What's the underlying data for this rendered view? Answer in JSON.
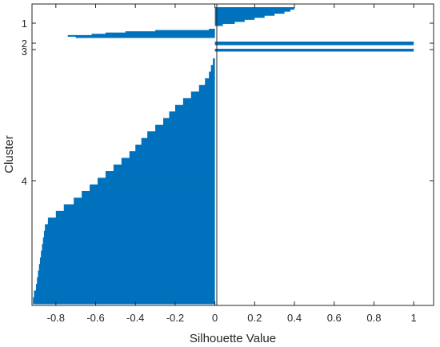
{
  "chart_data": {
    "type": "bar",
    "orientation": "horizontal",
    "xlabel": "Silhouette Value",
    "ylabel": "Cluster",
    "xlim": [
      -0.92,
      1.1
    ],
    "x_ticks": [
      -0.8,
      -0.6,
      -0.4,
      -0.2,
      0,
      0.2,
      0.4,
      0.6,
      0.8,
      1
    ],
    "x_tick_labels": [
      "-0.8",
      "-0.6",
      "-0.4",
      "-0.2",
      "0",
      "0.2",
      "0.4",
      "0.6",
      "0.8",
      "1"
    ],
    "y_tick_labels": [
      "1",
      "2",
      "3",
      "4"
    ],
    "grid": false,
    "bar_color": "#0072BD",
    "series": [
      {
        "cluster": "1",
        "values": [
          0.4,
          0.38,
          0.35,
          0.3,
          0.25,
          0.2,
          0.15,
          0.1,
          0.04
        ]
      },
      {
        "cluster": "1 (negative)",
        "values": [
          -0.03,
          -0.3,
          -0.45,
          -0.55,
          -0.62,
          -0.74,
          -0.7
        ]
      },
      {
        "cluster": "2",
        "values": [
          1
        ]
      },
      {
        "cluster": "3",
        "values": [
          1
        ]
      },
      {
        "cluster": "4",
        "values": [
          -0.01,
          -0.02,
          -0.03,
          -0.05,
          -0.08,
          -0.12,
          -0.16,
          -0.2,
          -0.23,
          -0.26,
          -0.3,
          -0.34,
          -0.37,
          -0.4,
          -0.43,
          -0.47,
          -0.51,
          -0.55,
          -0.59,
          -0.63,
          -0.67,
          -0.71,
          -0.76,
          -0.8,
          -0.84,
          -0.855,
          -0.86,
          -0.865,
          -0.87,
          -0.875,
          -0.88,
          -0.885,
          -0.89,
          -0.895,
          -0.9,
          -0.91,
          -0.915
        ]
      }
    ]
  }
}
